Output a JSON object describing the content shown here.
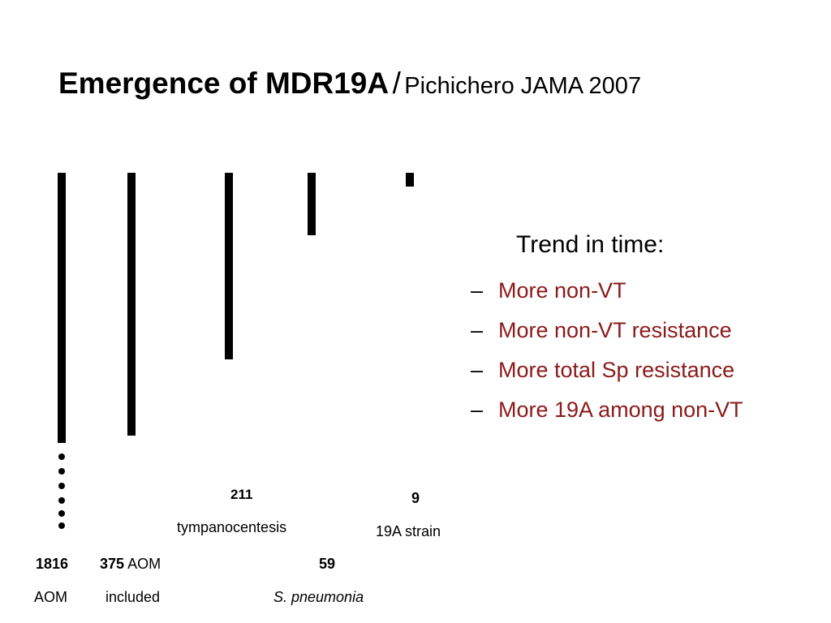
{
  "title": {
    "main": "Emergence of MDR19A",
    "separator": "/",
    "citation": "Pichichero JAMA 2007"
  },
  "bars": [
    {
      "count": "1816",
      "label": "AOM",
      "level": 1.0
    },
    {
      "count": "375",
      "label_suffix": "AOM",
      "label_line2": "included",
      "level": 0.9
    },
    {
      "count": "211",
      "label": "tympanocentesis",
      "level": 0.7
    },
    {
      "count": "59",
      "label": "S. pneumonia",
      "level": 0.23
    },
    {
      "count": "9",
      "label": "19A strain",
      "level": 0.05
    }
  ],
  "trend": {
    "heading": "Trend in time:",
    "dash": "–",
    "items": [
      "More non-VT",
      "More non-VT resistance",
      "More total Sp resistance",
      "More 19A among non-VT"
    ]
  },
  "colors": {
    "bar": "#000000",
    "bullet_text": "#8b1a1a"
  }
}
